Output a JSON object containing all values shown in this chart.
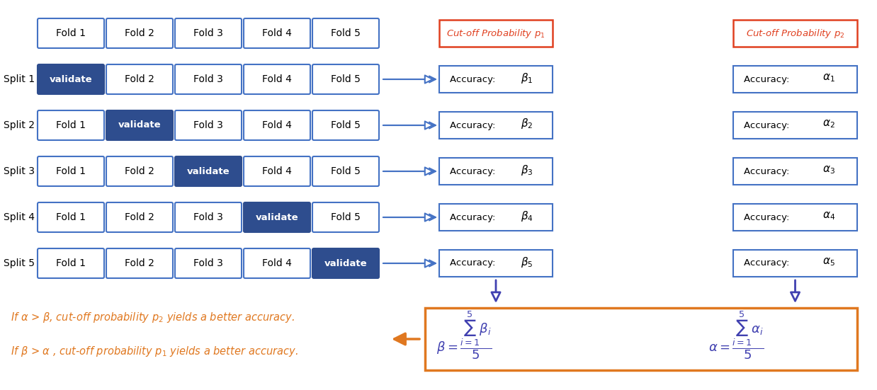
{
  "bg_color": "#ffffff",
  "fold_box_color": "#ffffff",
  "fold_box_edge": "#4472c4",
  "validate_box_color": "#2e4d8e",
  "validate_text_color": "#ffffff",
  "fold_text_color": "#000000",
  "accuracy_box_color": "#ffffff",
  "accuracy_box_edge": "#4472c4",
  "cutoff_box1_edge": "#e04020",
  "cutoff_box2_edge": "#e04020",
  "cutoff_text1_color": "#e04020",
  "cutoff_text2_color": "#e04020",
  "formula_box_edge": "#e07820",
  "formula_text_color": "#4040b0",
  "arrow_color": "#4040b0",
  "orange_arrow_color": "#e07820",
  "split_text_color": "#000000",
  "note_text_color": "#e07820",
  "p1_color": "#e04020",
  "p2_color": "#e04020",
  "splits": [
    "Split 1",
    "Split 2",
    "Split 3",
    "Split 4",
    "Split 5"
  ],
  "folds": [
    "Fold 1",
    "Fold 2",
    "Fold 3",
    "Fold 4",
    "Fold 5"
  ],
  "validate_label": "validate",
  "accuracy_beta_labels": [
    "β₁",
    "β₂",
    "β₃",
    "β₄",
    "β₅"
  ],
  "accuracy_alpha_labels": [
    "α₁",
    "α₂",
    "α₃",
    "α₄",
    "α₅"
  ],
  "cutoff1_text": "Cut-off Probability ",
  "cutoff1_sub": "p₁",
  "cutoff2_text": "Cut-off Probability ",
  "cutoff2_sub": "p₂",
  "formula_beta": "β = ",
  "formula_alpha": "α = ",
  "note1": "If α > β, cut-off probability p₂ yields a better accuracy.",
  "note2": "If β > α , cut-off probability p₁ yields a better accuracy."
}
